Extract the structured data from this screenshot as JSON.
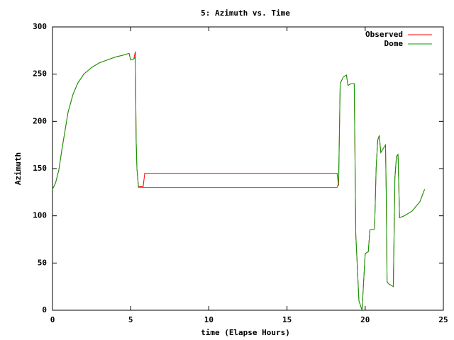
{
  "chart_data": {
    "type": "line",
    "title": "5: Azimuth vs. Time",
    "xlabel": "time (Elapse Hours)",
    "ylabel": "Azimuth",
    "x": [
      0,
      0.2,
      0.4,
      0.6,
      0.8,
      1.0,
      1.3,
      1.6,
      2.0,
      2.5,
      3.0,
      3.5,
      4.0,
      4.5,
      4.9,
      5.0,
      5.2,
      5.3,
      5.35,
      5.4,
      5.5,
      5.8,
      5.9,
      18.2,
      18.3,
      18.4,
      18.6,
      18.8,
      18.9,
      19.1,
      19.3,
      19.4,
      19.6,
      19.8,
      19.9,
      20.0,
      20.2,
      20.3,
      20.6,
      20.7,
      20.8,
      20.9,
      21.0,
      21.3,
      21.35,
      21.4,
      21.5,
      21.8,
      21.9,
      22.0,
      22.1,
      22.2,
      22.5,
      23.0,
      23.5,
      23.8
    ],
    "series": [
      {
        "name": "Observed",
        "color": "#ff0000",
        "values": [
          128,
          135,
          148,
          170,
          190,
          210,
          228,
          240,
          250,
          257,
          262,
          265,
          268,
          270,
          272,
          265,
          266,
          274,
          180,
          150,
          131,
          131,
          145,
          145,
          132,
          240,
          247,
          249,
          238,
          240,
          240,
          80,
          10,
          0,
          30,
          60,
          62,
          85,
          86,
          150,
          180,
          185,
          167,
          175,
          120,
          30,
          28,
          25,
          140,
          163,
          165,
          98,
          100,
          105,
          115,
          128
        ]
      },
      {
        "name": "Dome",
        "color": "#00a000",
        "values": [
          128,
          135,
          148,
          170,
          190,
          210,
          228,
          240,
          250,
          257,
          262,
          265,
          268,
          270,
          272,
          265,
          266,
          268,
          180,
          150,
          130,
          130,
          130,
          130,
          135,
          240,
          247,
          249,
          238,
          240,
          240,
          80,
          10,
          0,
          30,
          60,
          62,
          85,
          86,
          150,
          180,
          185,
          167,
          175,
          120,
          30,
          28,
          25,
          140,
          163,
          165,
          98,
          100,
          105,
          115,
          128
        ]
      }
    ],
    "xlim": [
      0,
      25
    ],
    "xticks": [
      0,
      5,
      10,
      15,
      20,
      25
    ],
    "ylim": [
      0,
      300
    ],
    "yticks": [
      0,
      50,
      100,
      150,
      200,
      250,
      300
    ],
    "grid": false,
    "legend": "top-right"
  }
}
